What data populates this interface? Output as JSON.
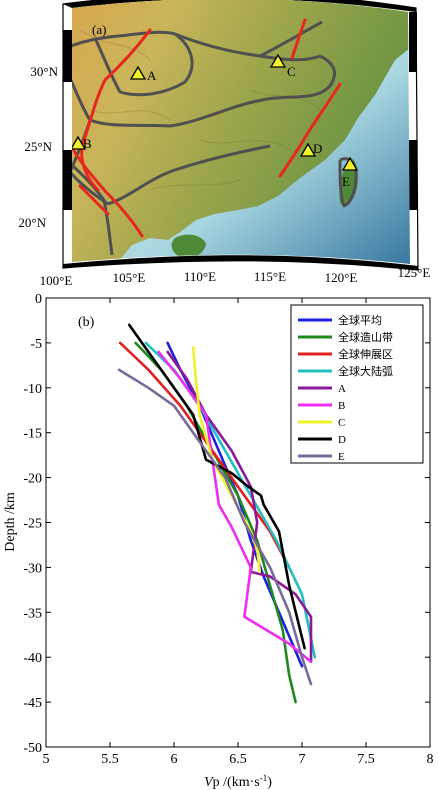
{
  "map_panel": {
    "label": "(a)",
    "lon_ticks": [
      "100°E",
      "105°E",
      "110°E",
      "115°E",
      "120°E",
      "125°E"
    ],
    "lat_ticks": [
      "30°N",
      "25°N",
      "20°N"
    ],
    "stations": [
      "A",
      "B",
      "C",
      "D",
      "E"
    ],
    "colors": {
      "fault": "#e8271e",
      "boundary": "#505050",
      "station": "#f2f22a"
    }
  },
  "chart_data": {
    "type": "line",
    "panel_label": "(b)",
    "xlabel_italic": "V",
    "xlabel_rest": "p /(km·s",
    "xlabel_sup": "-1",
    "xlabel_close": ")",
    "ylabel": "Depth /km",
    "xlim": [
      5,
      8
    ],
    "ylim": [
      -50,
      0
    ],
    "xticks": [
      5,
      5.5,
      6,
      6.5,
      7,
      7.5,
      8
    ],
    "yticks": [
      0,
      -5,
      -10,
      -15,
      -20,
      -25,
      -30,
      -35,
      -40,
      -45,
      -50
    ],
    "legend_position": "top-right",
    "grid": false,
    "series": [
      {
        "name": "全球平均",
        "color": "#1f1fe0",
        "x": [
          5.95,
          6.05,
          6.2,
          6.35,
          6.5,
          6.6,
          6.7,
          6.85,
          7.0
        ],
        "y": [
          -5,
          -8,
          -12,
          -17,
          -22,
          -27,
          -31,
          -36,
          -41
        ]
      },
      {
        "name": "全球造山带",
        "color": "#1e8a1e",
        "x": [
          5.7,
          5.9,
          6.1,
          6.3,
          6.5,
          6.65,
          6.75,
          6.85,
          6.9,
          6.95
        ],
        "y": [
          -5,
          -8,
          -12,
          -17,
          -22,
          -27,
          -32,
          -37,
          -42,
          -45
        ]
      },
      {
        "name": "全球伸展区",
        "color": "#e02020",
        "x": [
          5.58,
          5.8,
          6.05,
          6.3,
          6.55,
          6.75,
          6.9
        ],
        "y": [
          -5,
          -8,
          -12,
          -17,
          -22,
          -26,
          -30
        ]
      },
      {
        "name": "全球大陆弧",
        "color": "#20c0c0",
        "x": [
          5.78,
          6.0,
          6.2,
          6.4,
          6.6,
          6.8,
          7.0,
          7.1
        ],
        "y": [
          -5,
          -8,
          -12,
          -17,
          -22,
          -27,
          -33,
          -40
        ]
      },
      {
        "name": "A",
        "color": "#8a1a9a",
        "x": [
          5.95,
          6.1,
          6.25,
          6.45,
          6.6,
          6.65,
          6.6,
          6.75,
          6.95,
          7.07,
          7.07
        ],
        "y": [
          -6,
          -9,
          -13,
          -17,
          -21,
          -25,
          -30.5,
          -31,
          -33,
          -35.5,
          -40.5
        ]
      },
      {
        "name": "B",
        "color": "#ef2cef",
        "x": [
          5.88,
          6.05,
          6.25,
          6.3,
          6.35,
          6.45,
          6.6,
          6.55,
          6.9,
          7.07
        ],
        "y": [
          -6,
          -9,
          -13,
          -18,
          -23,
          -25.5,
          -30,
          -35.5,
          -38.5,
          -40.5
        ]
      },
      {
        "name": "C",
        "color": "#f2f22a",
        "x": [
          6.15,
          6.17,
          6.2,
          6.3,
          6.45,
          6.6,
          6.65,
          6.67
        ],
        "y": [
          -5.5,
          -9,
          -13,
          -18,
          -22,
          -26,
          -28,
          -30.5
        ]
      },
      {
        "name": "D",
        "color": "#000000",
        "x": [
          5.65,
          5.8,
          6.0,
          6.15,
          6.25,
          6.45,
          6.58,
          6.68,
          6.7,
          6.82,
          6.9,
          7.02
        ],
        "y": [
          -3,
          -6,
          -10,
          -13,
          -18,
          -19.5,
          -21,
          -22,
          -23,
          -26,
          -32,
          -39
        ]
      },
      {
        "name": "E",
        "color": "#7a6a9a",
        "x": [
          5.57,
          5.8,
          6.0,
          6.2,
          6.4,
          6.55,
          6.75,
          6.9,
          7.0,
          7.07
        ],
        "y": [
          -8,
          -10,
          -12,
          -16,
          -20,
          -25,
          -30,
          -35,
          -40,
          -43
        ]
      }
    ]
  }
}
